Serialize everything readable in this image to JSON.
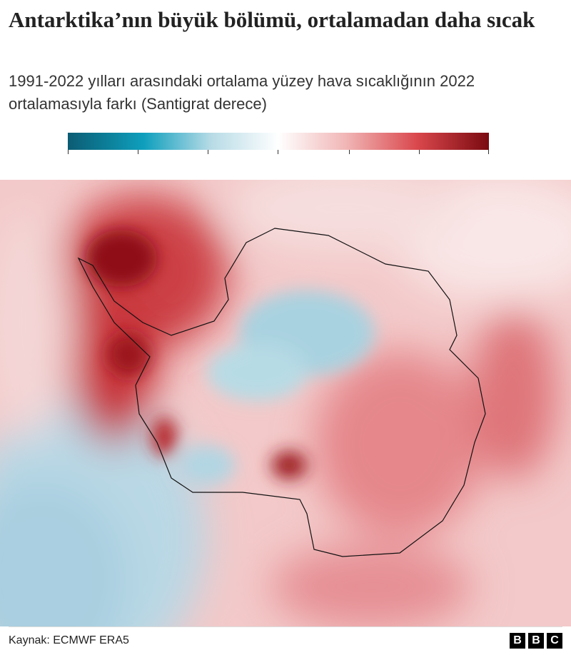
{
  "header": {
    "title": "Antarktika’nın büyük bölümü, ortalamadan daha sıcak",
    "subtitle": "1991-2022 yılları arasındaki ortalama yüzey hava sıcaklığının 2022 ortalamasıyla farkı (Santigrat derece)"
  },
  "footer": {
    "source": "Kaynak: ECMWF ERA5",
    "logo": [
      "B",
      "B",
      "C"
    ]
  }
}
